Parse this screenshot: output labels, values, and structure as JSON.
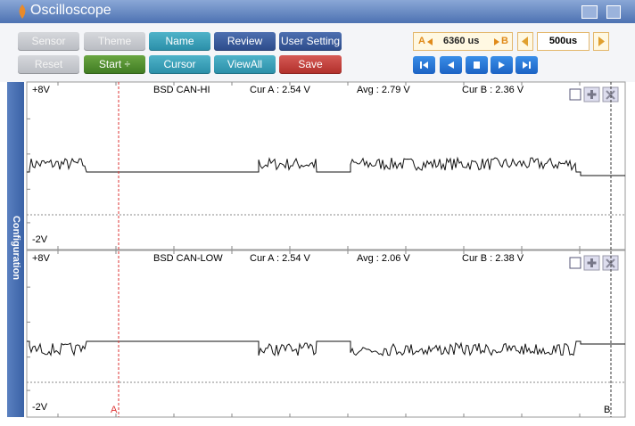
{
  "window": {
    "title": "Oscilloscope"
  },
  "toolbar": {
    "row1": [
      "Sensor",
      "Theme",
      "Name",
      "Review",
      "User Setting"
    ],
    "row2": [
      "Reset",
      "Start ÷",
      "Cursor",
      "ViewAll",
      "Save"
    ],
    "readout": {
      "a": "A",
      "value": "6360 us",
      "b": "B"
    },
    "time_div": "500us"
  },
  "side_tab": "Configuration",
  "channels": [
    {
      "max": "+8V",
      "min": "-2V",
      "name": "BSD CAN-HI",
      "cur_a": "Cur A : 2.54 V",
      "avg": "Avg : 2.79 V",
      "cur_b": "Cur B : 2.36 V"
    },
    {
      "max": "+8V",
      "min": "-2V",
      "name": "BSD CAN-LOW",
      "cur_a": "Cur A : 2.54 V",
      "avg": "Avg : 2.06 V",
      "cur_b": "Cur B : 2.38 V"
    }
  ],
  "cursors": {
    "a": "A",
    "b": "B"
  }
}
